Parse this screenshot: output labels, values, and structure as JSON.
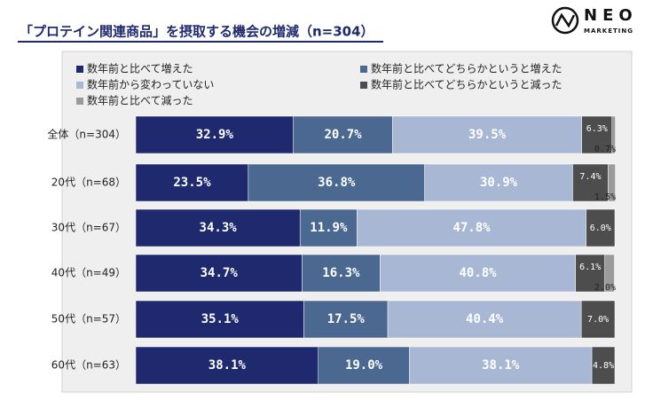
{
  "logo": {
    "name": "NEO",
    "sub": "MARKETING"
  },
  "chart_data": {
    "type": "stacked-bar-horizontal",
    "title": "「プロテイン関連商品」を摂取する機会の増減（n=304）",
    "categories": [
      "全体（n=304）",
      "20代（n=68）",
      "30代（n=67）",
      "40代（n=49）",
      "50代（n=57）",
      "60代（n=63）"
    ],
    "xlim": [
      0,
      100
    ],
    "series": [
      {
        "name": "数年前と比べて増えた",
        "color": "#1f2a6e",
        "values": [
          32.9,
          23.5,
          34.3,
          34.7,
          35.1,
          38.1
        ],
        "value_labels": [
          "32.9%",
          "23.5%",
          "34.3%",
          "34.7%",
          "35.1%",
          "38.1%"
        ]
      },
      {
        "name": "数年前と比べてどちらかというと増えた",
        "color": "#4b6890",
        "values": [
          20.7,
          36.8,
          11.9,
          16.3,
          17.5,
          19.0
        ],
        "value_labels": [
          "20.7%",
          "36.8%",
          "11.9%",
          "16.3%",
          "17.5%",
          "19.0%"
        ]
      },
      {
        "name": "数年前から変わっていない",
        "color": "#a8b7d4",
        "values": [
          39.5,
          30.9,
          47.8,
          40.8,
          40.4,
          38.1
        ],
        "value_labels": [
          "39.5%",
          "30.9%",
          "47.8%",
          "40.8%",
          "40.4%",
          "38.1%"
        ]
      },
      {
        "name": "数年前と比べてどちらかというと減った",
        "color": "#4d4d4d",
        "values": [
          6.3,
          7.4,
          6.0,
          6.1,
          7.0,
          4.8
        ],
        "value_labels": [
          "6.3%",
          "7.4%",
          "6.0%",
          "6.1%",
          "7.0%",
          "4.8%"
        ]
      },
      {
        "name": "数年前と比べて減った",
        "color": "#9a9a9a",
        "values": [
          0.7,
          1.5,
          null,
          2.0,
          null,
          null
        ],
        "value_labels": [
          "0.7%",
          "1.5%",
          null,
          "2.0%",
          null,
          null
        ]
      }
    ]
  }
}
